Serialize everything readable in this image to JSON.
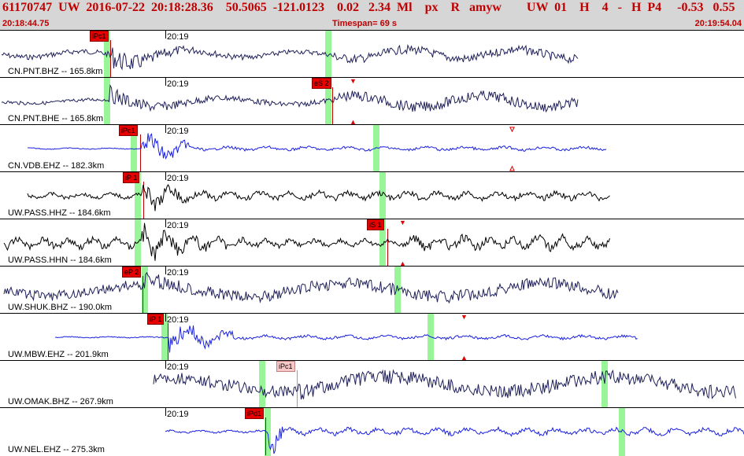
{
  "header": {
    "title": "61170747  UW  2016-07-22  20:18:28.36    50.5065  -121.0123    0.02   2.34  Ml    px    R   amyw        UW  01    H    4   -   H  P4     -0.53   0.55",
    "start_time": "20:18:44.75",
    "timespan": "Timespan=  69 s",
    "end_time": "20:19:54.04"
  },
  "traces": [
    {
      "label": "CN.PNT.BHZ -- 165.8km",
      "tick": "20:19",
      "color": "#20205a",
      "pick": "iPc1",
      "pick_color": "#e80000"
    },
    {
      "label": "CN.PNT.BHE -- 165.8km",
      "tick": "20:19",
      "color": "#20205a",
      "pick": "eS 2",
      "pick_color": "#e80000"
    },
    {
      "label": "CN.VDB.EHZ -- 182.3km",
      "tick": "20:19",
      "color": "#1a20e0",
      "pick": "iPc1",
      "pick_color": "#e80000"
    },
    {
      "label": "UW.PASS.HHZ -- 184.6km",
      "tick": "20:19",
      "color": "#000000",
      "pick": "iP 1",
      "pick_color": "#e80000"
    },
    {
      "label": "UW.PASS.HHN -- 184.6km",
      "tick": "20:19",
      "color": "#000000",
      "pick": "iS 1",
      "pick_color": "#e80000"
    },
    {
      "label": "UW.SHUK.BHZ -- 190.0km",
      "tick": "20:19",
      "color": "#20205a",
      "pick": "eP 2",
      "pick_color": "#e80000"
    },
    {
      "label": "UW.MBW.EHZ -- 201.9km",
      "tick": "20:19",
      "color": "#1a20e0",
      "pick": "iP 1",
      "pick_color": "#e80000"
    },
    {
      "label": "UW.OMAK.BHZ -- 267.9km",
      "tick": "20:19",
      "color": "#20205a",
      "pick": "iPc1",
      "pick_color": "#f0b0b0"
    },
    {
      "label": "UW.NEL.EHZ -- 275.3km",
      "tick": "20:19",
      "color": "#1a20e0",
      "pick": "iPd1",
      "pick_color": "#e80000"
    }
  ]
}
